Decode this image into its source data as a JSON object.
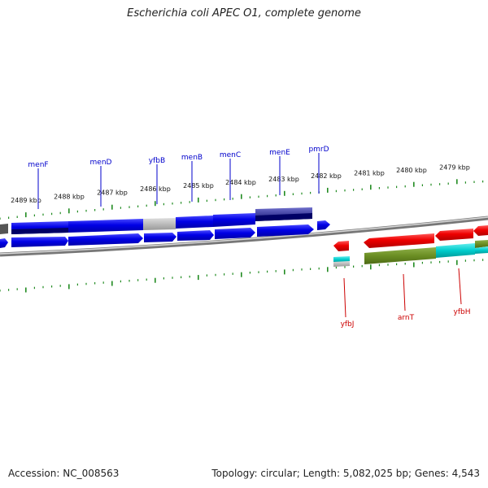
{
  "header": {
    "title": "Escherichia coli APEC O1, complete genome"
  },
  "footer": {
    "accession": "Accession: NC_008563",
    "topology": "Topology: circular; Length: 5,082,025 bp; Genes: 4,543"
  },
  "scale": {
    "labels": [
      "2489 kbp",
      "2488 kbp",
      "2487 kbp",
      "2486 kbp",
      "2485 kbp",
      "2484 kbp",
      "2483 kbp",
      "2482 kbp",
      "2481 kbp",
      "2480 kbp",
      "2479 kbp"
    ]
  },
  "genes": {
    "forward_strand": [
      "menF",
      "menD",
      "yfbB",
      "menB",
      "menC",
      "menE",
      "pmrD"
    ],
    "reverse_strand": [
      "yfbJ",
      "arnT",
      "yfbH"
    ]
  },
  "colors": {
    "forward": "#0000dd",
    "forward_dark": "#000066",
    "reverse": "#ee0000",
    "olive": "#6b8e23",
    "cyan": "#00cccc",
    "ticks": "#228b22",
    "backbone": "#888888"
  }
}
